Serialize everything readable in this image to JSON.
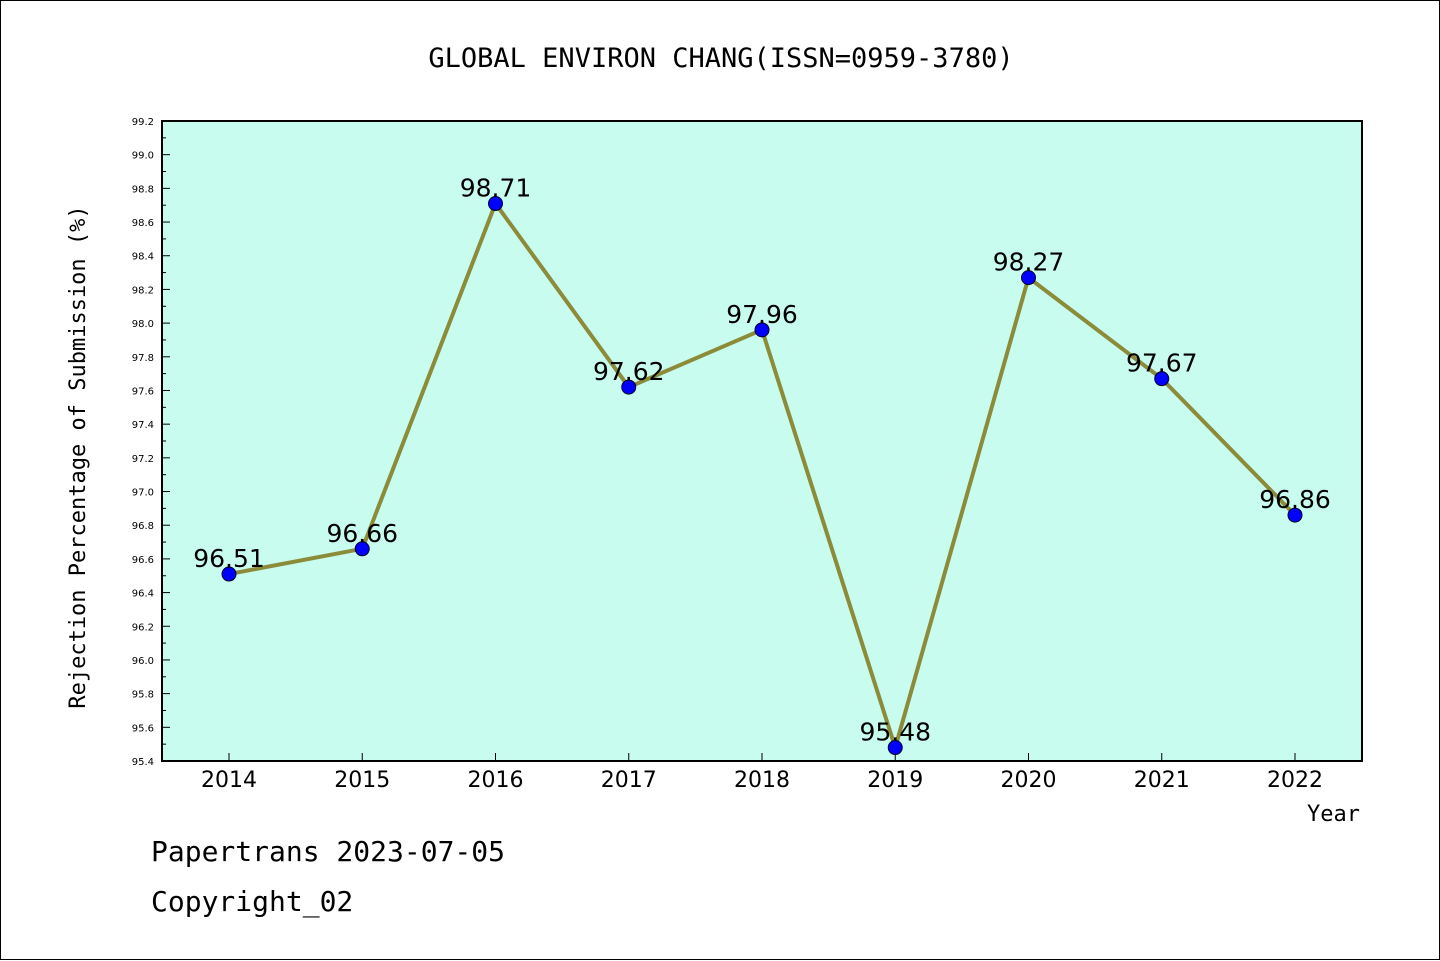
{
  "chart_data": {
    "type": "line",
    "title": "GLOBAL ENVIRON CHANG(ISSN=0959-3780)",
    "xlabel": "Year",
    "ylabel": "Rejection Percentage of Submission (%)",
    "categories": [
      "2014",
      "2015",
      "2016",
      "2017",
      "2018",
      "2019",
      "2020",
      "2021",
      "2022"
    ],
    "series": [
      {
        "values": [
          96.51,
          96.66,
          98.71,
          97.62,
          97.96,
          95.48,
          98.27,
          97.67,
          96.86
        ],
        "labels": [
          "96.51",
          "96.66",
          "98.71",
          "97.62",
          "97.96",
          "95.48",
          "98.27",
          "97.67",
          "96.86"
        ],
        "line_color": "#8b8b3a",
        "marker_color": "#0000ff"
      }
    ],
    "ylim": [
      95.4,
      99.2
    ],
    "yticks": [
      "95.4",
      "95.6",
      "95.8",
      "96.0",
      "96.2",
      "96.4",
      "96.6",
      "96.8",
      "97.0",
      "97.2",
      "97.4",
      "97.6",
      "97.8",
      "98.0",
      "98.2",
      "98.4",
      "98.6",
      "98.8",
      "99.0",
      "99.2"
    ],
    "plot_background": "#c8fcee",
    "grid": false
  },
  "footer": {
    "line1": "Papertrans 2023-07-05",
    "line2": "Copyright_02"
  }
}
